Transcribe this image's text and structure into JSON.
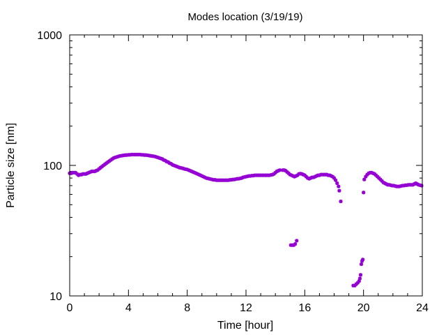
{
  "chart_data": {
    "type": "scatter",
    "title": "Modes location (3/19/19)",
    "xlabel": "Time [hour]",
    "ylabel": "Particle size [nm]",
    "xlim": [
      0,
      24
    ],
    "ylim": [
      10,
      1000
    ],
    "yscale": "log",
    "x_ticks": [
      0,
      4,
      8,
      12,
      16,
      20,
      24
    ],
    "x_tick_labels": [
      "0",
      "4",
      "8",
      "12",
      "16",
      "20",
      "24"
    ],
    "y_ticks": [
      10,
      100,
      1000
    ],
    "y_tick_labels": [
      "10",
      "100",
      "1000"
    ],
    "marker_color": "#9400d3",
    "grid": false,
    "series": [
      {
        "points": [
          [
            0.0,
            87
          ],
          [
            0.1,
            87
          ],
          [
            0.2,
            88
          ],
          [
            0.3,
            88
          ],
          [
            0.4,
            88
          ],
          [
            0.5,
            86
          ],
          [
            0.6,
            84
          ],
          [
            0.7,
            85
          ],
          [
            0.8,
            85
          ],
          [
            0.9,
            86
          ],
          [
            1.0,
            86
          ],
          [
            1.1,
            86
          ],
          [
            1.2,
            87
          ],
          [
            1.3,
            88
          ],
          [
            1.4,
            89
          ],
          [
            1.5,
            90
          ],
          [
            1.6,
            90
          ],
          [
            1.7,
            90
          ],
          [
            1.8,
            91
          ],
          [
            1.9,
            92
          ],
          [
            2.0,
            94
          ],
          [
            2.1,
            96
          ],
          [
            2.2,
            98
          ],
          [
            2.3,
            100
          ],
          [
            2.4,
            102
          ],
          [
            2.5,
            104
          ],
          [
            2.6,
            106
          ],
          [
            2.7,
            108
          ],
          [
            2.8,
            110
          ],
          [
            2.9,
            112
          ],
          [
            3.0,
            114
          ],
          [
            3.1,
            115
          ],
          [
            3.2,
            116
          ],
          [
            3.3,
            117
          ],
          [
            3.4,
            118
          ],
          [
            3.5,
            118.5
          ],
          [
            3.6,
            119
          ],
          [
            3.7,
            119.5
          ],
          [
            3.8,
            120
          ],
          [
            3.9,
            120
          ],
          [
            4.0,
            120.5
          ],
          [
            4.1,
            120.5
          ],
          [
            4.2,
            121
          ],
          [
            4.3,
            121
          ],
          [
            4.4,
            121
          ],
          [
            4.5,
            121
          ],
          [
            4.6,
            121
          ],
          [
            4.7,
            121
          ],
          [
            4.8,
            121
          ],
          [
            4.9,
            120.5
          ],
          [
            5.0,
            120.5
          ],
          [
            5.1,
            120
          ],
          [
            5.2,
            120
          ],
          [
            5.3,
            119.5
          ],
          [
            5.4,
            119
          ],
          [
            5.5,
            118.5
          ],
          [
            5.6,
            118
          ],
          [
            5.7,
            117.5
          ],
          [
            5.8,
            117
          ],
          [
            5.9,
            116
          ],
          [
            6.0,
            115
          ],
          [
            6.1,
            114
          ],
          [
            6.2,
            113
          ],
          [
            6.3,
            112
          ],
          [
            6.4,
            110
          ],
          [
            6.5,
            109
          ],
          [
            6.6,
            107
          ],
          [
            6.7,
            106
          ],
          [
            6.8,
            104
          ],
          [
            6.9,
            103
          ],
          [
            7.0,
            101
          ],
          [
            7.1,
            100
          ],
          [
            7.2,
            99
          ],
          [
            7.3,
            98
          ],
          [
            7.4,
            97
          ],
          [
            7.5,
            96
          ],
          [
            7.6,
            95.5
          ],
          [
            7.7,
            95
          ],
          [
            7.8,
            94
          ],
          [
            7.9,
            93.5
          ],
          [
            8.0,
            93
          ],
          [
            8.1,
            92
          ],
          [
            8.2,
            91
          ],
          [
            8.3,
            90
          ],
          [
            8.4,
            89
          ],
          [
            8.5,
            88
          ],
          [
            8.6,
            87
          ],
          [
            8.7,
            86
          ],
          [
            8.8,
            85
          ],
          [
            8.9,
            84
          ],
          [
            9.0,
            83
          ],
          [
            9.1,
            82
          ],
          [
            9.2,
            81
          ],
          [
            9.3,
            80
          ],
          [
            9.4,
            79.5
          ],
          [
            9.5,
            79
          ],
          [
            9.6,
            78.5
          ],
          [
            9.7,
            78
          ],
          [
            9.8,
            77.5
          ],
          [
            9.9,
            77.5
          ],
          [
            10.0,
            77
          ],
          [
            10.1,
            77
          ],
          [
            10.2,
            77
          ],
          [
            10.3,
            77
          ],
          [
            10.4,
            77
          ],
          [
            10.5,
            77
          ],
          [
            10.6,
            77
          ],
          [
            10.7,
            77
          ],
          [
            10.8,
            77
          ],
          [
            10.9,
            77.5
          ],
          [
            11.0,
            77.5
          ],
          [
            11.1,
            78
          ],
          [
            11.2,
            78
          ],
          [
            11.3,
            78.5
          ],
          [
            11.4,
            79
          ],
          [
            11.5,
            79
          ],
          [
            11.6,
            79.5
          ],
          [
            11.7,
            80
          ],
          [
            11.8,
            81
          ],
          [
            11.9,
            81.5
          ],
          [
            12.0,
            82
          ],
          [
            12.1,
            82.5
          ],
          [
            12.2,
            83
          ],
          [
            12.3,
            83
          ],
          [
            12.4,
            83.5
          ],
          [
            12.5,
            83.5
          ],
          [
            12.6,
            84
          ],
          [
            12.7,
            84
          ],
          [
            12.8,
            84
          ],
          [
            12.9,
            84
          ],
          [
            13.0,
            84
          ],
          [
            13.1,
            84
          ],
          [
            13.2,
            84
          ],
          [
            13.3,
            84
          ],
          [
            13.4,
            84
          ],
          [
            13.5,
            84
          ],
          [
            13.6,
            84
          ],
          [
            13.7,
            84.5
          ],
          [
            13.8,
            85
          ],
          [
            13.9,
            86
          ],
          [
            14.0,
            88
          ],
          [
            14.1,
            90
          ],
          [
            14.2,
            91
          ],
          [
            14.3,
            92
          ],
          [
            14.5,
            92
          ],
          [
            14.6,
            92
          ],
          [
            14.7,
            91
          ],
          [
            14.8,
            89
          ],
          [
            14.9,
            87
          ],
          [
            15.0,
            85
          ],
          [
            15.1,
            84
          ],
          [
            15.2,
            83
          ],
          [
            15.3,
            82
          ],
          [
            15.4,
            83
          ],
          [
            15.5,
            84
          ],
          [
            15.6,
            86
          ],
          [
            15.7,
            86.5
          ],
          [
            15.8,
            86
          ],
          [
            15.9,
            85
          ],
          [
            16.0,
            84
          ],
          [
            16.1,
            82
          ],
          [
            16.2,
            80
          ],
          [
            16.3,
            79
          ],
          [
            16.4,
            80
          ],
          [
            16.5,
            81
          ],
          [
            16.6,
            81
          ],
          [
            16.7,
            82
          ],
          [
            16.8,
            83
          ],
          [
            16.9,
            84
          ],
          [
            17.0,
            84
          ],
          [
            17.1,
            85
          ],
          [
            17.2,
            85
          ],
          [
            17.3,
            85
          ],
          [
            17.4,
            85
          ],
          [
            17.5,
            85
          ],
          [
            17.6,
            84
          ],
          [
            17.7,
            84
          ],
          [
            17.8,
            83
          ],
          [
            17.9,
            82
          ],
          [
            18.0,
            80
          ],
          [
            18.1,
            77
          ],
          [
            18.2,
            73
          ],
          [
            18.3,
            69
          ],
          [
            18.35,
            64
          ],
          [
            18.45,
            53
          ],
          [
            15.05,
            24.5
          ],
          [
            15.15,
            24.5
          ],
          [
            15.25,
            24.5
          ],
          [
            15.35,
            25
          ],
          [
            15.45,
            26.5
          ],
          [
            19.3,
            12
          ],
          [
            19.4,
            12
          ],
          [
            19.5,
            12.3
          ],
          [
            19.6,
            12.6
          ],
          [
            19.7,
            13
          ],
          [
            19.75,
            13.6
          ],
          [
            19.8,
            14.5
          ],
          [
            19.85,
            17.5
          ],
          [
            19.9,
            18.5
          ],
          [
            19.95,
            19
          ],
          [
            20.0,
            62
          ],
          [
            20.05,
            78
          ],
          [
            20.15,
            82
          ],
          [
            20.25,
            85
          ],
          [
            20.35,
            87
          ],
          [
            20.45,
            88
          ],
          [
            20.55,
            88
          ],
          [
            20.65,
            87
          ],
          [
            20.75,
            86
          ],
          [
            20.85,
            84
          ],
          [
            20.95,
            82
          ],
          [
            21.05,
            80
          ],
          [
            21.15,
            78
          ],
          [
            21.25,
            76
          ],
          [
            21.35,
            74
          ],
          [
            21.45,
            73
          ],
          [
            21.55,
            72
          ],
          [
            21.65,
            71
          ],
          [
            21.75,
            71
          ],
          [
            21.85,
            70.5
          ],
          [
            21.95,
            70
          ],
          [
            22.05,
            70
          ],
          [
            22.15,
            69.5
          ],
          [
            22.25,
            69
          ],
          [
            22.35,
            69
          ],
          [
            22.45,
            69
          ],
          [
            22.55,
            69.5
          ],
          [
            22.65,
            70
          ],
          [
            22.75,
            70
          ],
          [
            22.85,
            70.5
          ],
          [
            22.95,
            70.5
          ],
          [
            23.05,
            71
          ],
          [
            23.15,
            71
          ],
          [
            23.25,
            71
          ],
          [
            23.35,
            71
          ],
          [
            23.45,
            72
          ],
          [
            23.55,
            73
          ],
          [
            23.65,
            72
          ],
          [
            23.75,
            71
          ],
          [
            23.85,
            70.5
          ],
          [
            23.95,
            70
          ]
        ]
      }
    ]
  }
}
